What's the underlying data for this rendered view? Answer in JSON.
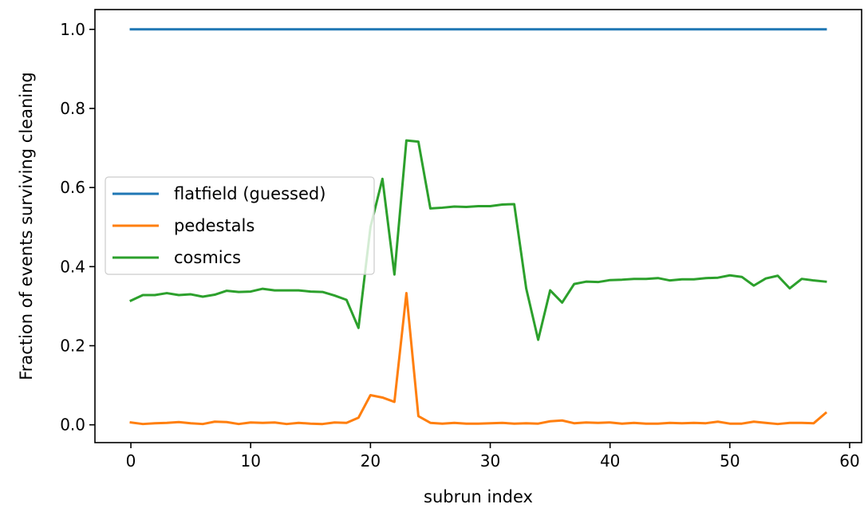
{
  "chart_data": {
    "type": "line",
    "title": "",
    "xlabel": "subrun index",
    "ylabel": "Fraction of events surviving cleaning",
    "xlim": [
      -3,
      61
    ],
    "ylim": [
      -0.045,
      1.05
    ],
    "xticks": [
      0,
      10,
      20,
      30,
      40,
      50,
      60
    ],
    "xtick_labels": [
      "0",
      "10",
      "20",
      "30",
      "40",
      "50",
      "60"
    ],
    "yticks": [
      0.0,
      0.2,
      0.4,
      0.6,
      0.8,
      1.0
    ],
    "ytick_labels": [
      "0.0",
      "0.2",
      "0.4",
      "0.6",
      "0.8",
      "1.0"
    ],
    "grid": false,
    "legend_position": "center-left",
    "x": [
      0,
      1,
      2,
      3,
      4,
      5,
      6,
      7,
      8,
      9,
      10,
      11,
      12,
      13,
      14,
      15,
      16,
      17,
      18,
      19,
      20,
      21,
      22,
      23,
      24,
      25,
      26,
      27,
      28,
      29,
      30,
      31,
      32,
      33,
      34,
      35,
      36,
      37,
      38,
      39,
      40,
      41,
      42,
      43,
      44,
      45,
      46,
      47,
      48,
      49,
      50,
      51,
      52,
      53,
      54,
      55,
      56,
      57,
      58
    ],
    "series": [
      {
        "name": "flatfield (guessed)",
        "color": "#1f77b4",
        "values": [
          1.0,
          1.0,
          1.0,
          1.0,
          1.0,
          1.0,
          1.0,
          1.0,
          1.0,
          1.0,
          1.0,
          1.0,
          1.0,
          1.0,
          1.0,
          1.0,
          1.0,
          1.0,
          1.0,
          1.0,
          1.0,
          1.0,
          1.0,
          1.0,
          1.0,
          1.0,
          1.0,
          1.0,
          1.0,
          1.0,
          1.0,
          1.0,
          1.0,
          1.0,
          1.0,
          1.0,
          1.0,
          1.0,
          1.0,
          1.0,
          1.0,
          1.0,
          1.0,
          1.0,
          1.0,
          1.0,
          1.0,
          1.0,
          1.0,
          1.0,
          1.0,
          1.0,
          1.0,
          1.0,
          1.0,
          1.0,
          1.0,
          1.0,
          1.0
        ]
      },
      {
        "name": "pedestals",
        "color": "#ff7f0e",
        "values": [
          0.006,
          0.002,
          0.004,
          0.005,
          0.007,
          0.004,
          0.002,
          0.008,
          0.007,
          0.002,
          0.006,
          0.005,
          0.006,
          0.002,
          0.005,
          0.003,
          0.002,
          0.006,
          0.005,
          0.018,
          0.075,
          0.069,
          0.058,
          0.333,
          0.022,
          0.005,
          0.003,
          0.005,
          0.003,
          0.003,
          0.004,
          0.005,
          0.003,
          0.004,
          0.003,
          0.009,
          0.011,
          0.004,
          0.006,
          0.005,
          0.006,
          0.003,
          0.005,
          0.003,
          0.003,
          0.005,
          0.004,
          0.005,
          0.004,
          0.008,
          0.003,
          0.003,
          0.008,
          0.005,
          0.002,
          0.005,
          0.005,
          0.004,
          0.03
        ]
      },
      {
        "name": "cosmics",
        "color": "#2ca02c",
        "values": [
          0.314,
          0.328,
          0.328,
          0.333,
          0.328,
          0.33,
          0.324,
          0.329,
          0.339,
          0.336,
          0.337,
          0.344,
          0.34,
          0.34,
          0.34,
          0.337,
          0.336,
          0.327,
          0.316,
          0.245,
          0.5,
          0.622,
          0.38,
          0.719,
          0.716,
          0.547,
          0.549,
          0.552,
          0.551,
          0.553,
          0.553,
          0.557,
          0.558,
          0.345,
          0.215,
          0.34,
          0.309,
          0.356,
          0.362,
          0.361,
          0.366,
          0.367,
          0.369,
          0.369,
          0.371,
          0.365,
          0.368,
          0.368,
          0.371,
          0.372,
          0.378,
          0.374,
          0.352,
          0.37,
          0.377,
          0.345,
          0.369,
          0.365,
          0.362
        ]
      }
    ]
  }
}
